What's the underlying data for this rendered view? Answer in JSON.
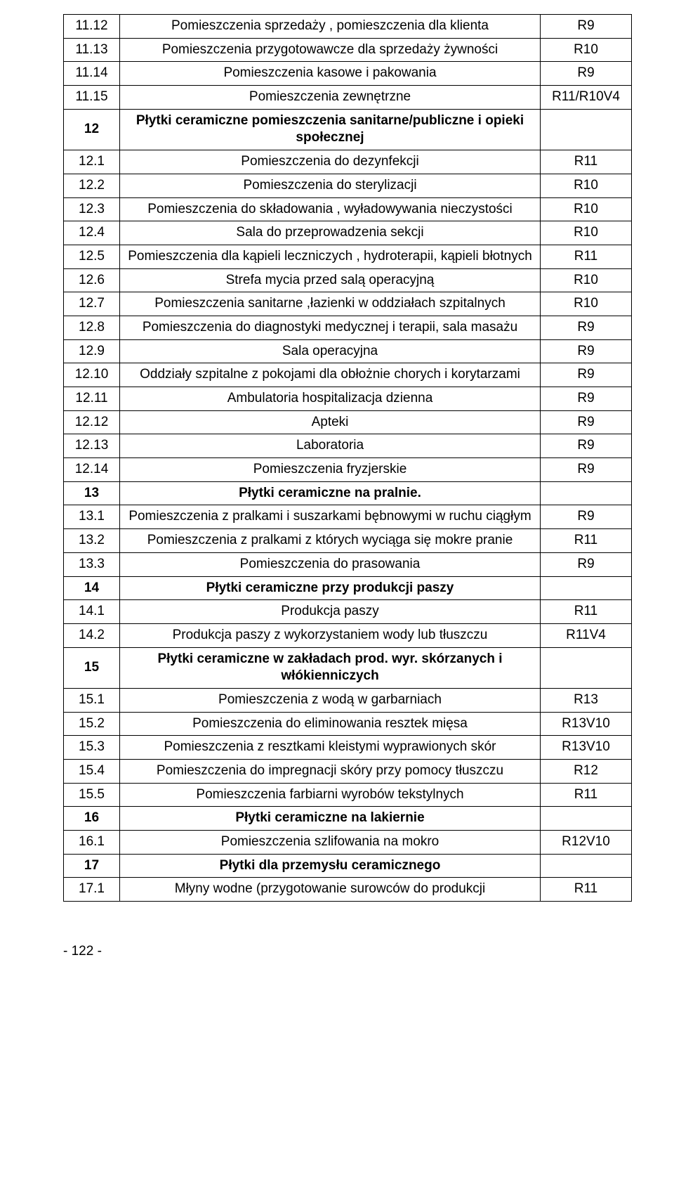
{
  "page_number": "- 122 -",
  "colors": {
    "border": "#000000",
    "background": "#ffffff",
    "text": "#000000"
  },
  "font": {
    "family": "Arial",
    "size_pt": 14
  },
  "table": {
    "rows": [
      {
        "code": "11.12",
        "desc": "Pomieszczenia sprzedaży , pomieszczenia dla klienta",
        "rval": "R9",
        "bold": false
      },
      {
        "code": "11.13",
        "desc": "Pomieszczenia przygotowawcze dla sprzedaży żywności",
        "rval": "R10",
        "bold": false
      },
      {
        "code": "11.14",
        "desc": "Pomieszczenia kasowe i pakowania",
        "rval": "R9",
        "bold": false
      },
      {
        "code": "11.15",
        "desc": "Pomieszczenia zewnętrzne",
        "rval": "R11/R10V4",
        "bold": false
      },
      {
        "code": "12",
        "desc": "Płytki ceramiczne pomieszczenia sanitarne/publiczne i opieki społecznej",
        "rval": "",
        "bold": true
      },
      {
        "code": "12.1",
        "desc": "Pomieszczenia do dezynfekcji",
        "rval": "R11",
        "bold": false
      },
      {
        "code": "12.2",
        "desc": "Pomieszczenia do sterylizacji",
        "rval": "R10",
        "bold": false
      },
      {
        "code": "12.3",
        "desc": "Pomieszczenia do składowania , wyładowywania nieczystości",
        "rval": "R10",
        "bold": false
      },
      {
        "code": "12.4",
        "desc": "Sala do przeprowadzenia sekcji",
        "rval": "R10",
        "bold": false
      },
      {
        "code": "12.5",
        "desc": "Pomieszczenia dla kąpieli  leczniczych , hydroterapii, kąpieli błotnych",
        "rval": "R11",
        "bold": false
      },
      {
        "code": "12.6",
        "desc": "Strefa mycia przed salą operacyjną",
        "rval": "R10",
        "bold": false
      },
      {
        "code": "12.7",
        "desc": "Pomieszczenia sanitarne ,łazienki w oddziałach szpitalnych",
        "rval": "R10",
        "bold": false
      },
      {
        "code": "12.8",
        "desc": "Pomieszczenia do diagnostyki medycznej i terapii, sala masażu",
        "rval": "R9",
        "bold": false
      },
      {
        "code": "12.9",
        "desc": "Sala operacyjna",
        "rval": "R9",
        "bold": false
      },
      {
        "code": "12.10",
        "desc": "Oddziały szpitalne z pokojami dla obłożnie chorych i korytarzami",
        "rval": "R9",
        "bold": false
      },
      {
        "code": "12.11",
        "desc": "Ambulatoria hospitalizacja dzienna",
        "rval": "R9",
        "bold": false
      },
      {
        "code": "12.12",
        "desc": "Apteki",
        "rval": "R9",
        "bold": false
      },
      {
        "code": "12.13",
        "desc": "Laboratoria",
        "rval": "R9",
        "bold": false
      },
      {
        "code": "12.14",
        "desc": "Pomieszczenia fryzjerskie",
        "rval": "R9",
        "bold": false
      },
      {
        "code": "13",
        "desc": "Płytki ceramiczne na pralnie.",
        "rval": "",
        "bold": true
      },
      {
        "code": "13.1",
        "desc": "Pomieszczenia z pralkami i suszarkami bębnowymi w ruchu ciągłym",
        "rval": "R9",
        "bold": false
      },
      {
        "code": "13.2",
        "desc": "Pomieszczenia z pralkami z których wyciąga się mokre pranie",
        "rval": "R11",
        "bold": false
      },
      {
        "code": "13.3",
        "desc": "Pomieszczenia do prasowania",
        "rval": "R9",
        "bold": false
      },
      {
        "code": "14",
        "desc": "Płytki ceramiczne przy produkcji paszy",
        "rval": "",
        "bold": true
      },
      {
        "code": "14.1",
        "desc": "Produkcja paszy",
        "rval": "R11",
        "bold": false
      },
      {
        "code": "14.2",
        "desc": "Produkcja paszy z wykorzystaniem wody lub tłuszczu",
        "rval": "R11V4",
        "bold": false
      },
      {
        "code": "15",
        "desc": "Płytki ceramiczne w zakładach prod. wyr. skórzanych i włókienniczych",
        "rval": "",
        "bold": true
      },
      {
        "code": "15.1",
        "desc": "Pomieszczenia z wodą w garbarniach",
        "rval": "R13",
        "bold": false
      },
      {
        "code": "15.2",
        "desc": "Pomieszczenia do eliminowania resztek mięsa",
        "rval": "R13V10",
        "bold": false
      },
      {
        "code": "15.3",
        "desc": "Pomieszczenia z resztkami kleistymi wyprawionych skór",
        "rval": "R13V10",
        "bold": false
      },
      {
        "code": "15.4",
        "desc": "Pomieszczenia do impregnacji skóry przy pomocy tłuszczu",
        "rval": "R12",
        "bold": false
      },
      {
        "code": "15.5",
        "desc": "Pomieszczenia farbiarni wyrobów tekstylnych",
        "rval": "R11",
        "bold": false
      },
      {
        "code": "16",
        "desc": "Płytki ceramiczne na lakiernie",
        "rval": "",
        "bold": true
      },
      {
        "code": "16.1",
        "desc": "Pomieszczenia szlifowania na mokro",
        "rval": "R12V10",
        "bold": false
      },
      {
        "code": "17",
        "desc": "Płytki dla przemysłu ceramicznego",
        "rval": "",
        "bold": true
      },
      {
        "code": "17.1",
        "desc": "Młyny wodne (przygotowanie surowców do produkcji",
        "rval": "R11",
        "bold": false
      }
    ]
  }
}
